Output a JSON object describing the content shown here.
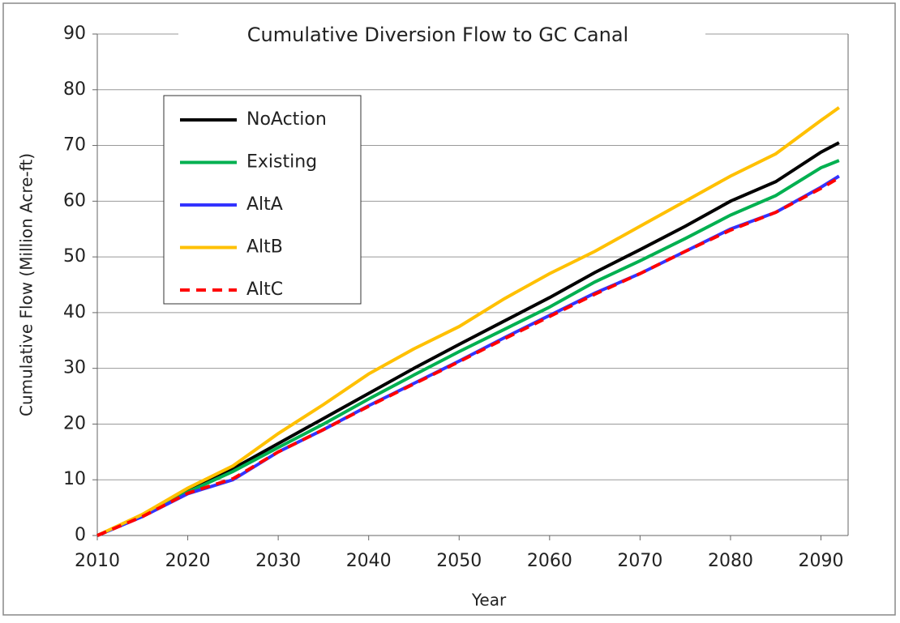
{
  "chart_data": {
    "type": "line",
    "title": "Cumulative Diversion Flow to GC Canal",
    "x_label": "Year",
    "y_label": "Cumulative Flow (Million Acre-ft)",
    "x": [
      2010,
      2015,
      2020,
      2025,
      2030,
      2035,
      2040,
      2045,
      2050,
      2055,
      2060,
      2065,
      2070,
      2075,
      2080,
      2085,
      2090,
      2092
    ],
    "series": [
      {
        "name": "NoAction",
        "color": "#000000",
        "dashed": false,
        "values": [
          0,
          3.5,
          8,
          12,
          16.5,
          21,
          25.5,
          30,
          34.3,
          38.5,
          42.7,
          47.2,
          51.3,
          55.5,
          60,
          63.5,
          68.8,
          70.5
        ]
      },
      {
        "name": "Existing",
        "color": "#00b050",
        "dashed": false,
        "values": [
          0,
          3.5,
          7.8,
          11.5,
          15.8,
          20,
          24.5,
          28.8,
          33,
          37,
          41,
          45.5,
          49.3,
          53.3,
          57.5,
          61,
          66,
          67.3
        ]
      },
      {
        "name": "AltA",
        "color": "#3333ff",
        "dashed": false,
        "values": [
          0,
          3.4,
          7.5,
          10,
          15,
          19,
          23.3,
          27.3,
          31.3,
          35.5,
          39.5,
          43.5,
          47,
          51,
          55,
          58,
          62.5,
          64.5
        ]
      },
      {
        "name": "AltB",
        "color": "#ffc000",
        "dashed": false,
        "values": [
          0,
          3.8,
          8.5,
          12.5,
          18.3,
          23.5,
          29,
          33.5,
          37.5,
          42.5,
          47,
          51,
          55.5,
          60,
          64.5,
          68.5,
          74.5,
          76.8
        ]
      },
      {
        "name": "AltC",
        "color": "#ff0000",
        "dashed": true,
        "values": [
          0,
          3.4,
          7.6,
          10.2,
          15,
          19,
          23.2,
          27.2,
          31.2,
          35.3,
          39.3,
          43.3,
          47,
          51,
          54.8,
          58,
          62.3,
          64.2
        ]
      }
    ],
    "xlim": [
      2010,
      2093
    ],
    "xticks": [
      2010,
      2020,
      2030,
      2040,
      2050,
      2060,
      2070,
      2080,
      2090
    ],
    "ylim": [
      0,
      90
    ],
    "yticks": [
      0,
      10,
      20,
      30,
      40,
      50,
      60,
      70,
      80,
      90
    ],
    "grid": true,
    "legend": "upper-left"
  }
}
